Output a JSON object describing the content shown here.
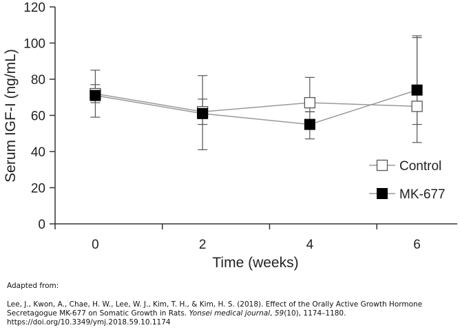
{
  "chart_data": {
    "type": "line",
    "title": "",
    "xlabel": "Time (weeks)",
    "ylabel": "Serum IGF-I (ng/mL)",
    "x": [
      0,
      2,
      4,
      6
    ],
    "x_tick_labels": [
      "0",
      "2",
      "4",
      "6"
    ],
    "xlim": [
      -0.75,
      6.75
    ],
    "ylim": [
      0,
      120
    ],
    "y_ticks": [
      0,
      20,
      40,
      60,
      80,
      100,
      120
    ],
    "y_tick_labels": [
      "0",
      "20",
      "40",
      "60",
      "80",
      "100",
      "120"
    ],
    "grid": false,
    "legend_position": "right",
    "series": [
      {
        "name": "Control",
        "marker": "open-square",
        "line_color": "#999999",
        "marker_color": "#555555",
        "values": [
          72,
          62,
          67,
          65
        ],
        "error_low": [
          59,
          55,
          62,
          55
        ],
        "error_high": [
          85,
          69,
          81,
          104
        ]
      },
      {
        "name": "MK-677",
        "marker": "filled-square",
        "line_color": "#999999",
        "marker_color": "#000000",
        "values": [
          71,
          61,
          55,
          74
        ],
        "error_low": [
          67,
          41,
          47,
          45
        ],
        "error_high": [
          77,
          82,
          62,
          103
        ]
      }
    ]
  },
  "caption": {
    "adapted": "Adapted from:",
    "ref_line1": "Lee, J., Kwon, A., Chae, H. W., Lee, W. J., Kim, T. H., & Kim, H. S. (2018). Effect of the Orally Active Growth Hormone",
    "ref_line2_start": "Secretagogue MK-677 on Somatic Growth in Rats. ",
    "ref_journal": "Yonsei medical journal",
    "ref_sep": ", ",
    "ref_volume": "59",
    "ref_issue_pages": "(10), 1174–1180.",
    "ref_doi": "https://doi.org/10.3349/ymj.2018.59.10.1174"
  }
}
